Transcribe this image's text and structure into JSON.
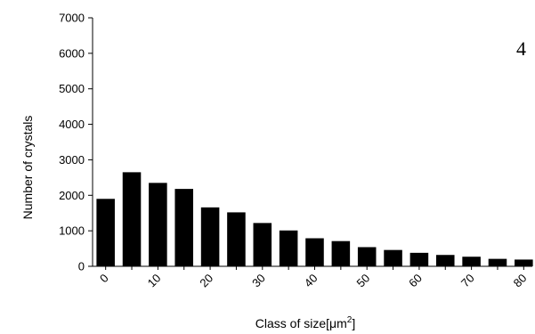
{
  "chart_data": {
    "type": "bar",
    "panel_label": "4",
    "xlabel": "Class of size[μm",
    "xlabel_sup": "2",
    "xlabel_end": "]",
    "ylabel": "Number of crystals",
    "ylim": [
      0,
      7000
    ],
    "yticks": [
      "0",
      "1000",
      "2000",
      "3000",
      "4000",
      "5000",
      "6000",
      "7000"
    ],
    "categories": [
      "0",
      "5",
      "10",
      "15",
      "20",
      "25",
      "30",
      "35",
      "40",
      "45",
      "50",
      "55",
      "60",
      "65",
      "70",
      "75",
      "80"
    ],
    "xtick_labels": [
      "0",
      "",
      "10",
      "",
      "20",
      "",
      "30",
      "",
      "40",
      "",
      "50",
      "",
      "60",
      "",
      "70",
      "",
      "80"
    ],
    "values": [
      1900,
      2650,
      2350,
      2180,
      1660,
      1520,
      1220,
      1010,
      790,
      710,
      540,
      460,
      380,
      320,
      270,
      210,
      190
    ],
    "bar_color": "#000000",
    "grid": false,
    "legend": "none"
  }
}
